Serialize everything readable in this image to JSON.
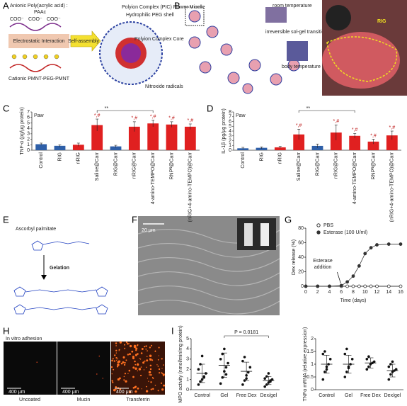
{
  "panel_labels": [
    "A",
    "B",
    "C",
    "D",
    "E",
    "F",
    "G",
    "H",
    "I"
  ],
  "a": {
    "anionic": "Anionic Poly(acrylic acid) :",
    "paac": "PAAc",
    "coo": "COO⁻",
    "interaction": "Electrostatic Interaction",
    "assembly": "Self-assembly",
    "cationic": "Cationic PMNT-PEG-PMNT",
    "micelle": "Polyion Complex (PIC) Flower Micelle",
    "shell": "Hydrophilic PEG shell",
    "core": "Polyion Complex Core",
    "radicals": "Nitroxide radicals"
  },
  "b": {
    "room": "room temperature",
    "transition": "irreversible sol-gel transition",
    "body": "body temperature",
    "rig": "RIG"
  },
  "c": {
    "type": "bar",
    "ylabel": "TNF-α (pg/μg protein)",
    "inset": "Paw",
    "bracket_label": "**",
    "categories": [
      "Control",
      "RIG",
      "nRIG",
      "Saline@Carr",
      "RIG@Carr",
      "nRIG@Carr",
      "4-amino-TEMPO@Carr",
      "RNPᴺ@Carr",
      "(nRIG+4-amino-TEMPO)@Carr"
    ],
    "values": [
      1.1,
      0.8,
      1.0,
      4.6,
      0.7,
      4.3,
      4.9,
      4.7,
      4.3
    ],
    "errors": [
      0.2,
      0.2,
      0.3,
      1.1,
      0.2,
      0.9,
      0.6,
      0.5,
      0.5
    ],
    "colors": [
      "#2e5fa8",
      "#2e5fa8",
      "#e02020",
      "#e02020",
      "#2e5fa8",
      "#e02020",
      "#e02020",
      "#e02020",
      "#e02020"
    ],
    "bar_labels": [
      null,
      null,
      null,
      "*,#",
      null,
      "*,#",
      "*,#",
      "*,#",
      "*,#"
    ],
    "ylim": [
      0,
      7
    ],
    "yticks": [
      0,
      1,
      2,
      3,
      4,
      5,
      6,
      7
    ]
  },
  "d": {
    "type": "bar",
    "ylabel": "IL-1β (pg/μg protein)",
    "inset": "Paw",
    "bracket_label": "**",
    "categories": [
      "Control",
      "RIG",
      "nRIG",
      "Saline@Carr",
      "RIG@Carr",
      "nRIG@Carr",
      "4-amino-TEMPO@Carr",
      "RNPᴺ@Carr",
      "(nRIG+4-amino-TEMPO)@Carr"
    ],
    "values": [
      0.4,
      0.5,
      0.6,
      3.3,
      0.9,
      3.7,
      3.0,
      1.8,
      3.1
    ],
    "errors": [
      0.2,
      0.2,
      0.2,
      1.1,
      0.4,
      1.6,
      0.5,
      0.5,
      0.9
    ],
    "colors": [
      "#2e5fa8",
      "#2e5fa8",
      "#e02020",
      "#e02020",
      "#2e5fa8",
      "#e02020",
      "#e02020",
      "#e02020",
      "#e02020"
    ],
    "bar_labels": [
      null,
      null,
      null,
      "*,#",
      null,
      "*,#",
      "*,#",
      "*,#",
      "*,#"
    ],
    "ylim": [
      0,
      8
    ],
    "yticks": [
      0,
      1,
      2,
      3,
      4,
      5,
      6,
      7,
      8
    ]
  },
  "e": {
    "title": "Ascorbyl palmitate",
    "arrow": "Gelation"
  },
  "f": {
    "scale": "20 μm"
  },
  "g": {
    "type": "line",
    "xlabel": "Time (days)",
    "ylabel": "Dex release (%)",
    "annotation": [
      "Esterase",
      "addition"
    ],
    "x": [
      0,
      2,
      4,
      6,
      7,
      8,
      9,
      10,
      11,
      12,
      14,
      16
    ],
    "series": [
      {
        "name": "PBS",
        "color": "#333333",
        "values": [
          0,
          0,
          0,
          0,
          0,
          0,
          0,
          0,
          0,
          0,
          0,
          0
        ]
      },
      {
        "name": "Esterase (100 U/ml)",
        "color": "#333333",
        "values": [
          0,
          0,
          0,
          1,
          6,
          14,
          28,
          45,
          53,
          57,
          58,
          58
        ]
      }
    ],
    "xlim": [
      0,
      16
    ],
    "xticks": [
      0,
      2,
      4,
      6,
      8,
      10,
      12,
      14,
      16
    ],
    "ylim": [
      0,
      80
    ],
    "yticks": [
      0,
      20,
      40,
      60,
      80
    ]
  },
  "h": {
    "title": "In vitro adhesion",
    "scale": "400 μm",
    "labels": [
      "Uncoated",
      "Mucin",
      "Transferrin"
    ]
  },
  "i": {
    "plots": [
      {
        "type": "scatter",
        "ylabel": "MPO activity (nmol/min/mg protein)",
        "annotation": "P = 0.0181",
        "categories": [
          "Control",
          "Gel",
          "Free Dex",
          "Dex/gel"
        ],
        "ylim": [
          0,
          5
        ],
        "yticks": [
          0,
          1,
          2,
          3,
          4,
          5
        ],
        "groups": [
          {
            "points": [
              0.5,
              0.8,
              1.0,
              1.3,
              1.6,
              2.0,
              2.5,
              3.3,
              1.2
            ],
            "mean": 1.6,
            "sd": 0.9
          },
          {
            "points": [
              0.6,
              1.2,
              1.8,
              2.2,
              2.6,
              3.0,
              3.5,
              4.0,
              1.5
            ],
            "mean": 2.4,
            "sd": 1.2
          },
          {
            "points": [
              0.5,
              0.9,
              1.4,
              1.7,
              2.2,
              2.8,
              3.2,
              1.1
            ],
            "mean": 1.8,
            "sd": 0.9
          },
          {
            "points": [
              0.3,
              0.5,
              0.7,
              0.8,
              1.0,
              1.1,
              1.3,
              1.6,
              0.9
            ],
            "mean": 0.9,
            "sd": 0.4
          }
        ]
      },
      {
        "type": "scatter",
        "ylabel": "TNFα mRNA (relative expression)",
        "categories": [
          "Control",
          "Gel",
          "Free Dex",
          "Dex/gel"
        ],
        "ylim": [
          0,
          2
        ],
        "yticks": [
          0,
          0.5,
          1,
          1.5,
          2
        ],
        "groups": [
          {
            "points": [
              0.4,
              0.7,
              0.9,
              1.0,
              1.2,
              1.4,
              1.5,
              0.8
            ],
            "mean": 1.0,
            "sd": 0.35
          },
          {
            "points": [
              0.5,
              0.7,
              0.9,
              1.0,
              1.2,
              1.4,
              1.6,
              0.85
            ],
            "mean": 1.0,
            "sd": 0.35
          },
          {
            "points": [
              0.8,
              0.9,
              1.0,
              1.05,
              1.1,
              1.2,
              1.3
            ],
            "mean": 1.05,
            "sd": 0.2
          },
          {
            "points": [
              0.4,
              0.6,
              0.7,
              0.75,
              0.8,
              0.9,
              1.0,
              1.1
            ],
            "mean": 0.75,
            "sd": 0.25
          }
        ]
      }
    ]
  }
}
